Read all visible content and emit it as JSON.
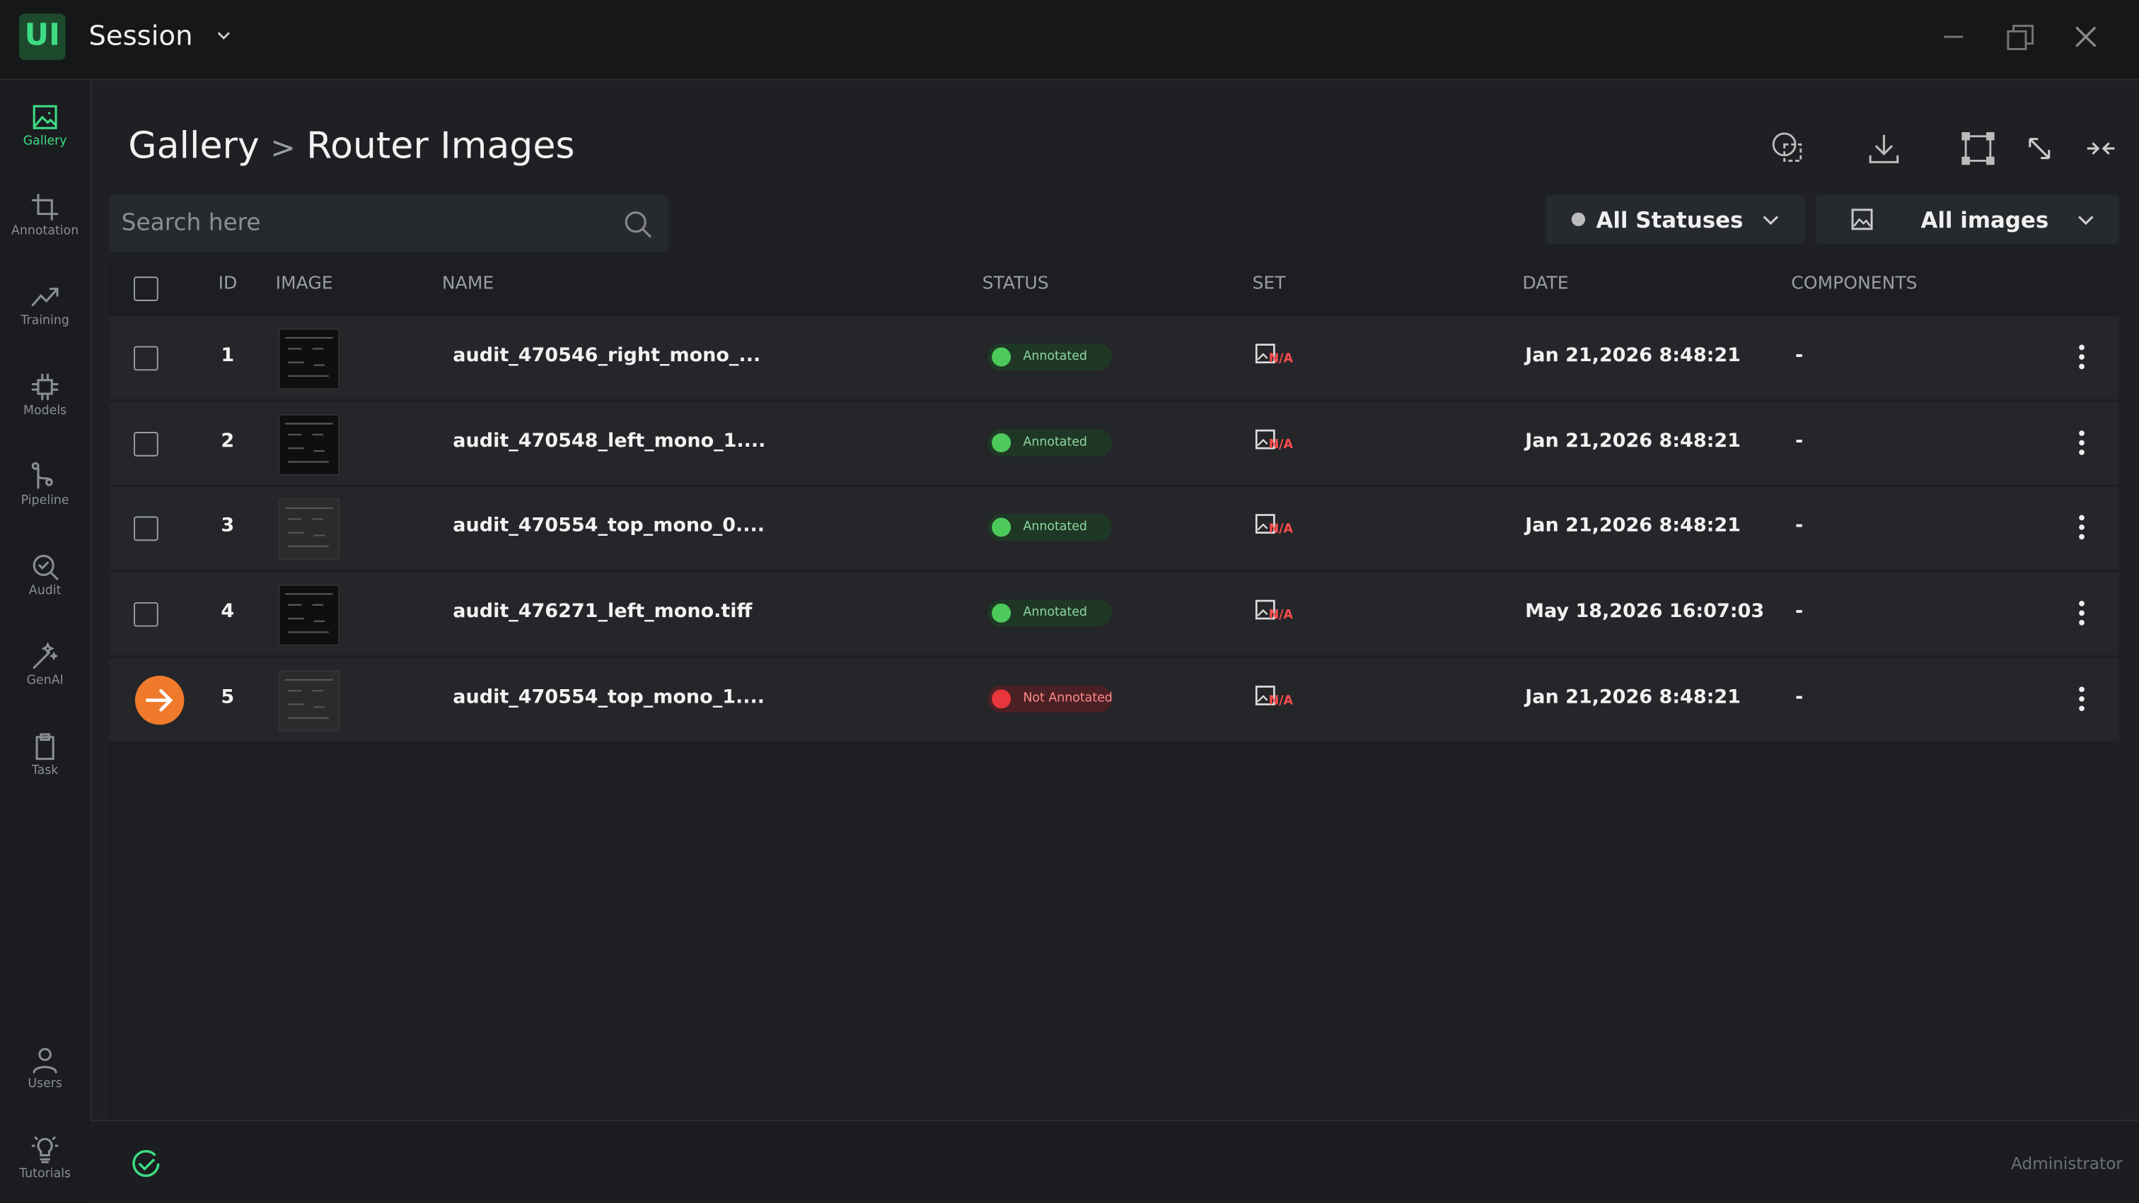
{
  "app": {
    "logo": "UI",
    "title": "Session"
  },
  "sidebar": {
    "top": [
      {
        "label": "Gallery"
      },
      {
        "label": "Annotation"
      },
      {
        "label": "Training"
      },
      {
        "label": "Models"
      },
      {
        "label": "Pipeline"
      },
      {
        "label": "Audit"
      },
      {
        "label": "GenAI"
      },
      {
        "label": "Task"
      }
    ],
    "bottom": [
      {
        "label": "Users"
      },
      {
        "label": "Tutorials"
      }
    ]
  },
  "breadcrumb": {
    "root": "Gallery",
    "separator": ">",
    "current": "Router Images"
  },
  "search": {
    "placeholder": "Search here"
  },
  "filters": {
    "status": "All Statuses",
    "images": "All images"
  },
  "table": {
    "columns": [
      "ID",
      "IMAGE",
      "NAME",
      "STATUS",
      "SET",
      "DATE",
      "COMPONENTS"
    ],
    "rows": [
      {
        "id": 1,
        "name": "audit_470546_right_mono_...",
        "status": "Annotated",
        "set": "N/A",
        "date": "Jan 21,2026 8:48:21",
        "components": "-"
      },
      {
        "id": 2,
        "name": "audit_470548_left_mono_1....",
        "status": "Annotated",
        "set": "N/A",
        "date": "Jan 21,2026 8:48:21",
        "components": "-"
      },
      {
        "id": 3,
        "name": "audit_470554_top_mono_0....",
        "status": "Annotated",
        "set": "N/A",
        "date": "Jan 21,2026 8:48:21",
        "components": "-"
      },
      {
        "id": 4,
        "name": "audit_476271_left_mono.tiff",
        "status": "Annotated",
        "set": "N/A",
        "date": "May 18,2026 16:07:03",
        "components": "-"
      },
      {
        "id": 5,
        "name": "audit_470554_top_mono_1....",
        "status": "Not Annotated",
        "set": "N/A",
        "date": "Jan 21,2026 8:48:21",
        "components": "-"
      }
    ]
  },
  "footer": {
    "user": "Administrator"
  }
}
